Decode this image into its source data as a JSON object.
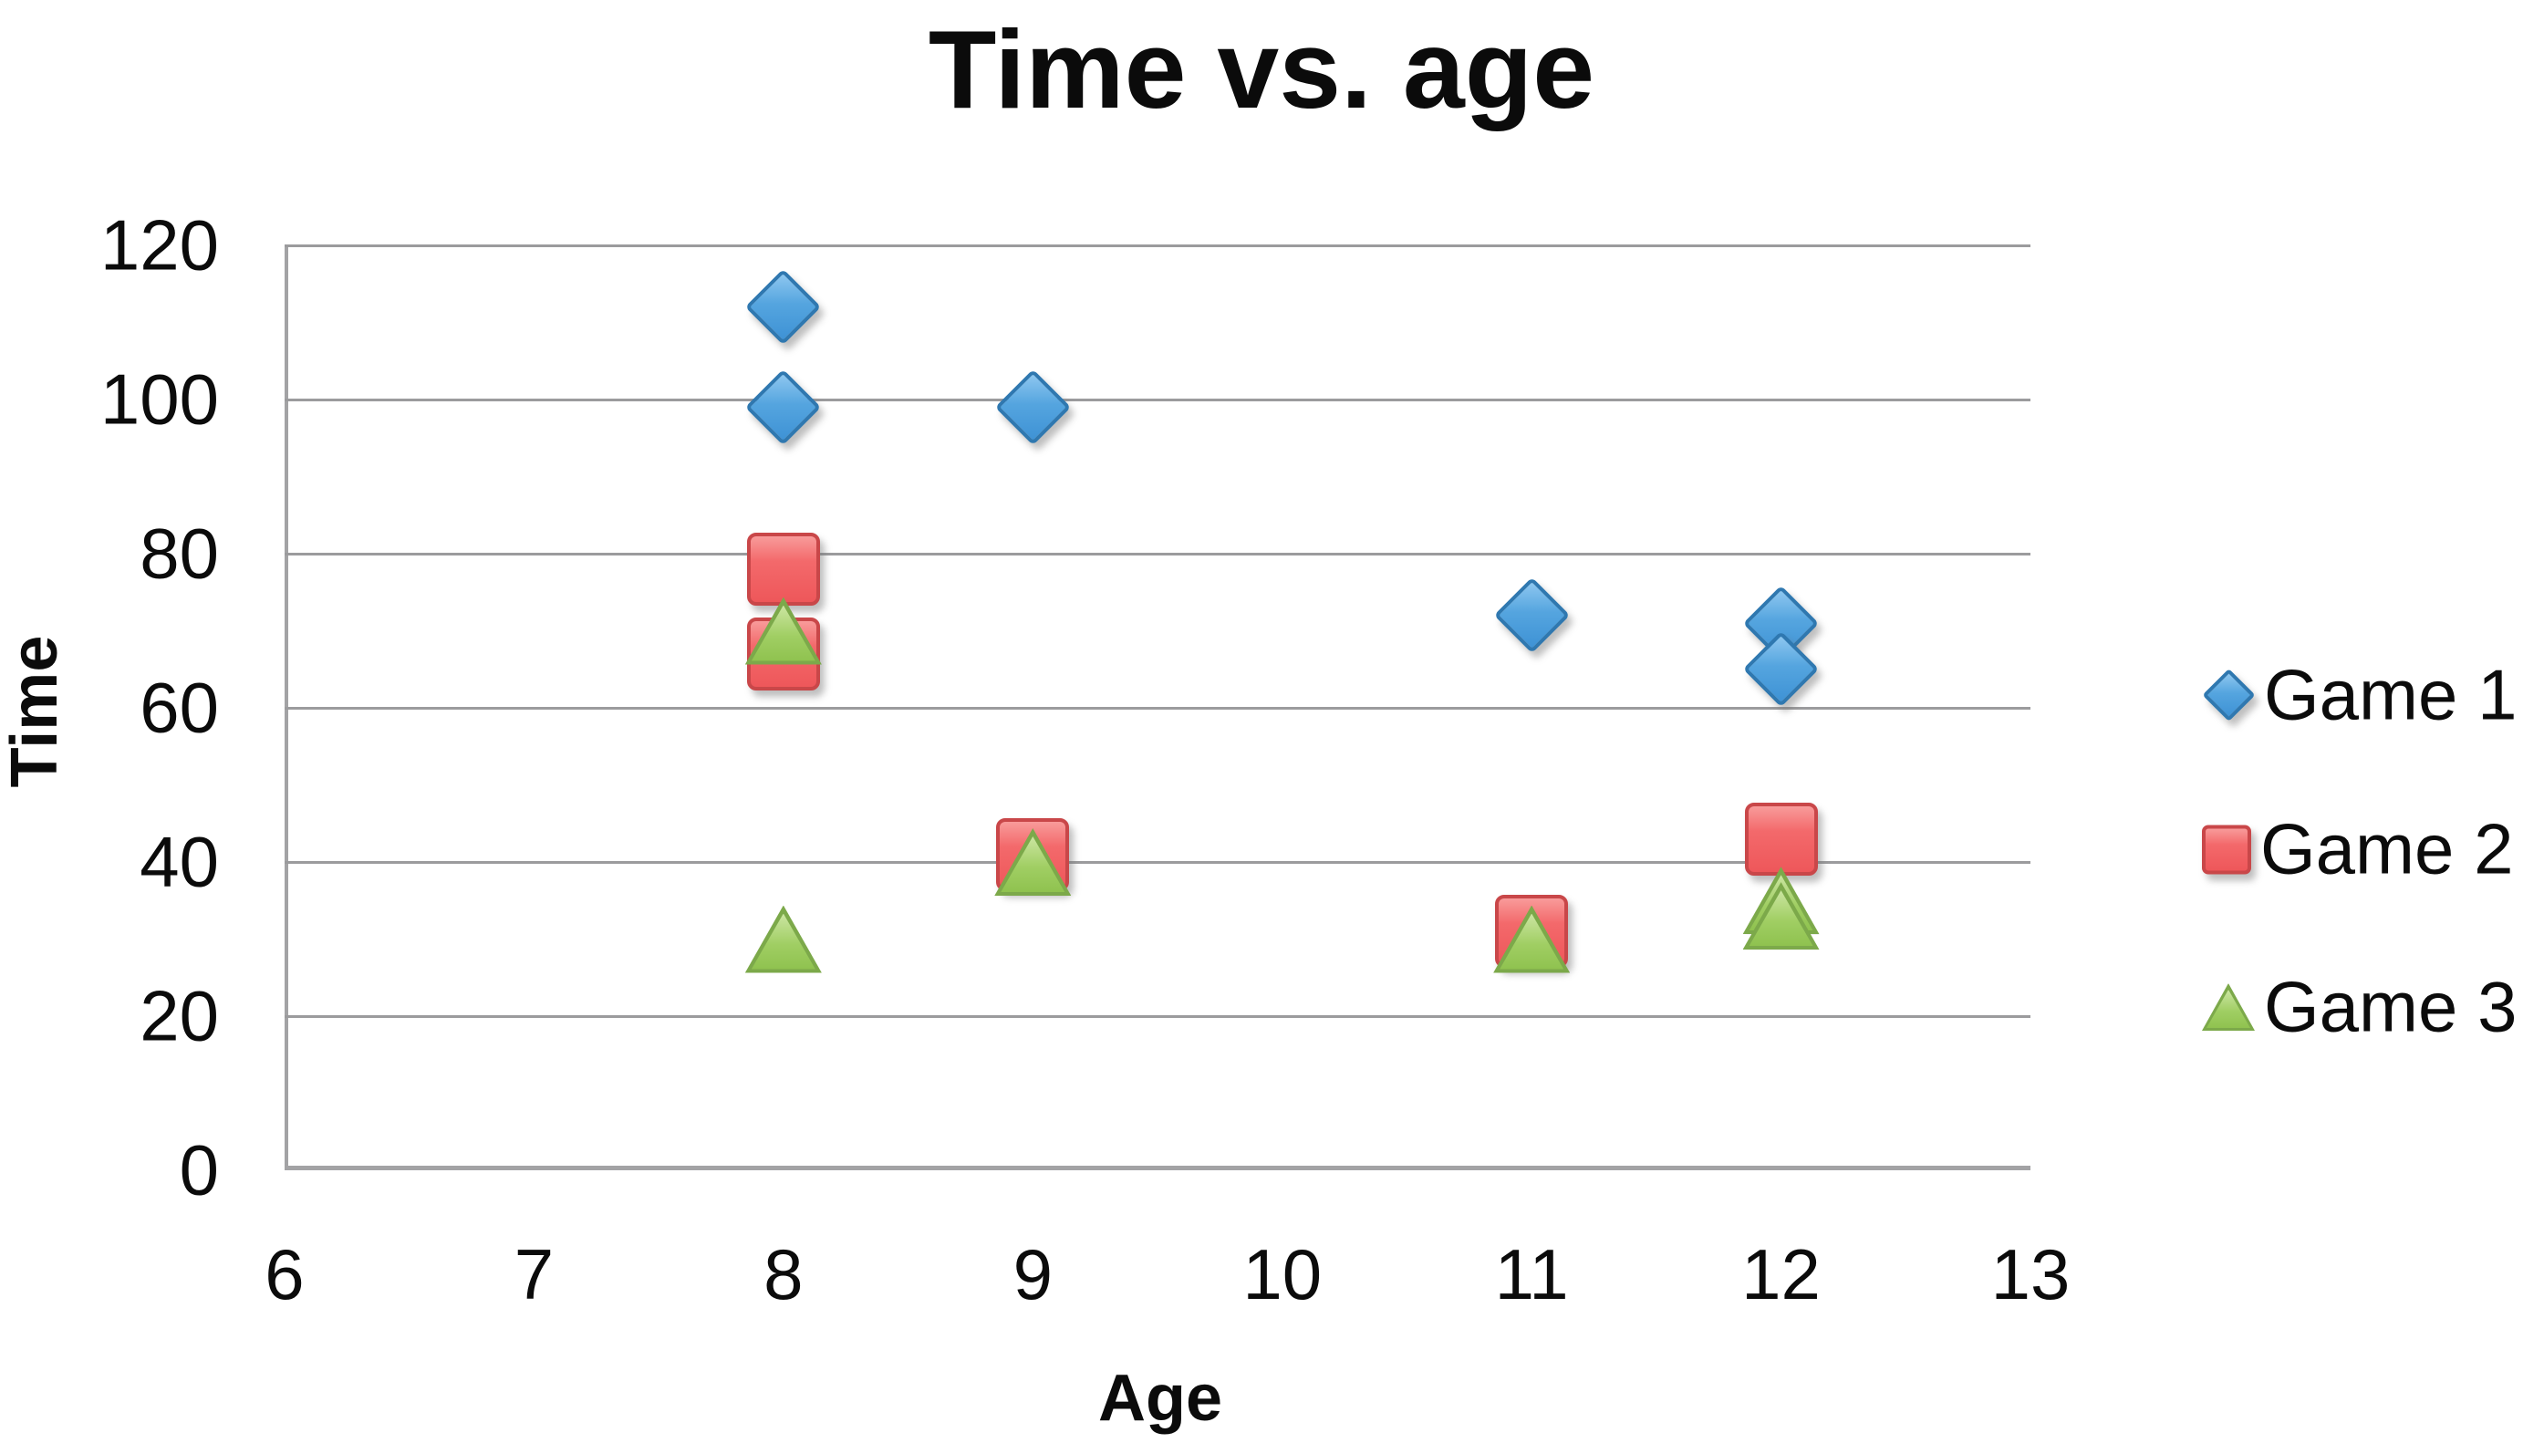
{
  "title": "Time vs. age",
  "axes": {
    "x_title": "Age",
    "y_title": "Time"
  },
  "legend": {
    "position": "right",
    "items": [
      {
        "label": "Game 1",
        "marker": "diamond"
      },
      {
        "label": "Game 2",
        "marker": "square"
      },
      {
        "label": "Game 3",
        "marker": "triangle"
      }
    ]
  },
  "colors": {
    "game1_fill": "#4da0dc",
    "game1_border": "#2f78b0",
    "game2_fill": "#f2696b",
    "game2_border": "#c94749",
    "game3_fill": "#9ccb5b",
    "game3_border": "#7ca94a",
    "gridline": "#9b9b9d",
    "axis_line": "#a3a3a5",
    "text": "#0b0b0b"
  },
  "chart_data": {
    "type": "scatter",
    "title": "Time vs. age",
    "xlabel": "Age",
    "ylabel": "Time",
    "xlim": [
      6,
      13
    ],
    "ylim": [
      0,
      120
    ],
    "x_ticks": [
      6,
      7,
      8,
      9,
      10,
      11,
      12,
      13
    ],
    "y_ticks": [
      0,
      20,
      40,
      60,
      80,
      100,
      120
    ],
    "grid": true,
    "legend_position": "right",
    "series": [
      {
        "name": "Game 1",
        "marker": "diamond",
        "color": "#4da0dc",
        "border_color": "#2f78b0",
        "points": [
          [
            8,
            112
          ],
          [
            8,
            99
          ],
          [
            9,
            99
          ],
          [
            11,
            72
          ],
          [
            12,
            71
          ],
          [
            12,
            65
          ]
        ]
      },
      {
        "name": "Game 2",
        "marker": "square",
        "color": "#f2696b",
        "border_color": "#c94749",
        "points": [
          [
            8,
            78
          ],
          [
            8,
            67
          ],
          [
            9,
            41
          ],
          [
            11,
            31
          ],
          [
            12,
            43
          ]
        ]
      },
      {
        "name": "Game 3",
        "marker": "triangle",
        "color": "#9ccb5b",
        "border_color": "#7ca94a",
        "points": [
          [
            8,
            70
          ],
          [
            8,
            30
          ],
          [
            9,
            40
          ],
          [
            11,
            30
          ],
          [
            12,
            35
          ],
          [
            12,
            33
          ]
        ]
      }
    ]
  }
}
